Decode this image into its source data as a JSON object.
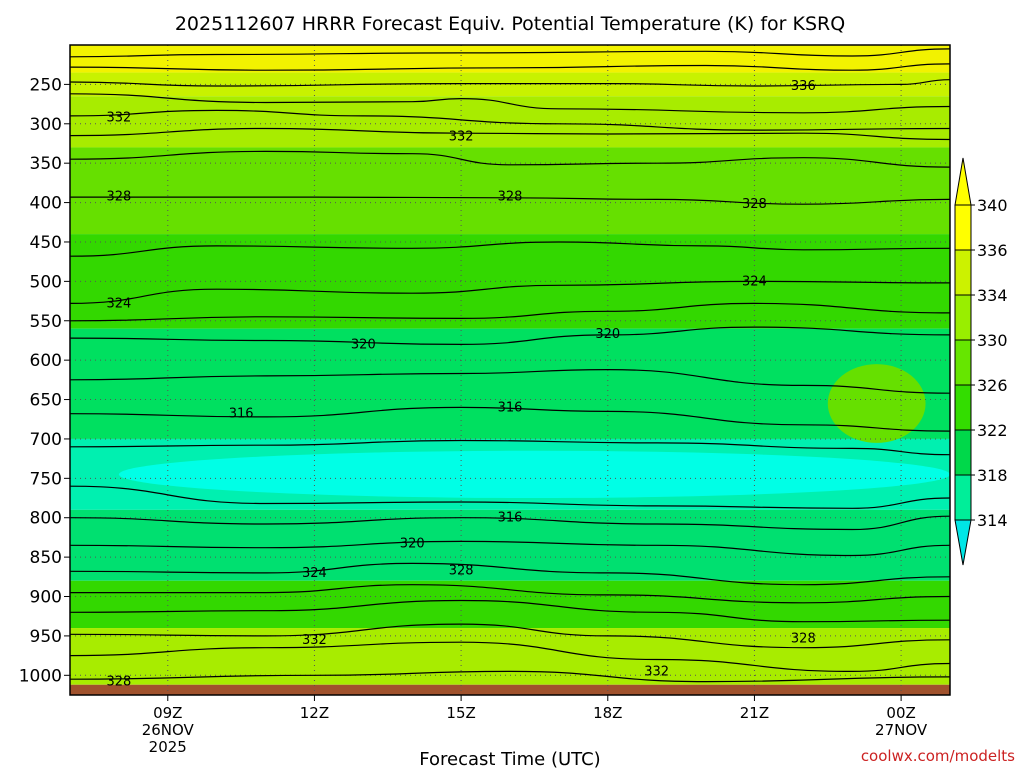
{
  "chart_data": {
    "type": "contour",
    "title": "2025112607 HRRR Forecast Equiv. Potential Temperature (K) for KSRQ",
    "xlabel": "Forecast Time (UTC)",
    "ylabel": "",
    "credit": "coolwx.com/modelts",
    "units": "K",
    "x_ticks": [
      {
        "hour": 9,
        "label": "09Z",
        "sub1": "26NOV",
        "sub2": "2025"
      },
      {
        "hour": 12,
        "label": "12Z",
        "sub1": "",
        "sub2": ""
      },
      {
        "hour": 15,
        "label": "15Z",
        "sub1": "",
        "sub2": ""
      },
      {
        "hour": 18,
        "label": "18Z",
        "sub1": "",
        "sub2": ""
      },
      {
        "hour": 21,
        "label": "21Z",
        "sub1": "",
        "sub2": ""
      },
      {
        "hour": 24,
        "label": "00Z",
        "sub1": "27NOV",
        "sub2": ""
      }
    ],
    "x_range_hours": [
      7,
      25
    ],
    "y_ticks": [
      250,
      300,
      350,
      400,
      450,
      500,
      550,
      600,
      650,
      700,
      750,
      800,
      850,
      900,
      950,
      1000
    ],
    "y_range_hpa": [
      200,
      1025
    ],
    "colorbar": {
      "levels": [
        314,
        318,
        322,
        326,
        330,
        334,
        336,
        340
      ],
      "colors": [
        "#00e6e6",
        "#00ee99",
        "#00d84a",
        "#33dd00",
        "#66e600",
        "#99ee00",
        "#ccf200",
        "#ffff00"
      ]
    },
    "layers": [
      {
        "p_top": 200,
        "p_bot": 235,
        "value": 340,
        "color": "#f2f200"
      },
      {
        "p_top": 235,
        "p_bot": 265,
        "value": 336,
        "color": "#c8f200"
      },
      {
        "p_top": 265,
        "p_bot": 330,
        "value": 334,
        "color": "#a8ec00"
      },
      {
        "p_top": 330,
        "p_bot": 440,
        "value": 330,
        "color": "#66e000"
      },
      {
        "p_top": 440,
        "p_bot": 560,
        "value": 326,
        "color": "#33d800"
      },
      {
        "p_top": 560,
        "p_bot": 700,
        "value": 322,
        "color": "#00e060"
      },
      {
        "p_top": 700,
        "p_bot": 790,
        "value": 318,
        "color": "#00f0b0"
      },
      {
        "p_top": 790,
        "p_bot": 880,
        "value": 322,
        "color": "#00e070"
      },
      {
        "p_top": 880,
        "p_bot": 940,
        "value": 326,
        "color": "#33d800"
      },
      {
        "p_top": 940,
        "p_bot": 1012,
        "value": 330,
        "color": "#a8ec00"
      }
    ],
    "cold_core": {
      "p_top": 715,
      "p_bot": 775,
      "value": 314,
      "color": "#00ffe6",
      "h_start": 8,
      "h_end": 25
    },
    "warm_pocket": {
      "p_top": 605,
      "p_bot": 705,
      "value": 328,
      "color": "#66e000",
      "h_start": 22.5,
      "h_end": 24.5
    },
    "ground": {
      "p_top": 1012,
      "p_bot": 1025,
      "color": "#a0522d"
    },
    "contours": [
      {
        "value": 338,
        "points": [
          [
            7,
            215
          ],
          [
            10,
            212
          ],
          [
            15,
            210
          ],
          [
            20,
            208
          ],
          [
            23,
            214
          ],
          [
            25,
            205
          ]
        ]
      },
      {
        "value": 338,
        "points": [
          [
            7,
            228
          ],
          [
            11,
            232
          ],
          [
            16,
            229
          ],
          [
            20,
            226
          ],
          [
            23,
            232
          ],
          [
            25,
            224
          ]
        ]
      },
      {
        "value": 336,
        "points": [
          [
            7,
            247
          ],
          [
            10,
            252
          ],
          [
            15,
            249
          ],
          [
            18,
            249
          ],
          [
            21,
            252
          ],
          [
            24,
            250
          ],
          [
            25,
            244
          ]
        ]
      },
      {
        "value": 334,
        "points": [
          [
            7,
            262
          ],
          [
            11,
            273
          ],
          [
            14,
            272
          ],
          [
            15,
            268
          ],
          [
            17,
            281
          ],
          [
            22,
            286
          ],
          [
            25,
            278
          ]
        ]
      },
      {
        "value": 332,
        "points": [
          [
            7,
            290
          ],
          [
            10,
            283
          ],
          [
            13,
            290
          ],
          [
            17,
            300
          ],
          [
            21,
            308
          ],
          [
            25,
            306
          ]
        ]
      },
      {
        "value": 332,
        "points": [
          [
            7,
            315
          ],
          [
            11,
            306
          ],
          [
            15,
            312
          ],
          [
            18,
            313
          ],
          [
            22,
            312
          ],
          [
            25,
            320
          ]
        ]
      },
      {
        "value": 330,
        "points": [
          [
            7,
            345
          ],
          [
            11,
            335
          ],
          [
            14,
            338
          ],
          [
            16,
            352
          ],
          [
            19,
            350
          ],
          [
            22,
            343
          ],
          [
            25,
            355
          ]
        ]
      },
      {
        "value": 328,
        "points": [
          [
            7,
            393
          ],
          [
            12,
            393
          ],
          [
            16,
            394
          ],
          [
            19,
            396
          ],
          [
            22,
            402
          ],
          [
            25,
            396
          ]
        ]
      },
      {
        "value": 326,
        "points": [
          [
            7,
            468
          ],
          [
            10,
            455
          ],
          [
            14,
            458
          ],
          [
            17,
            450
          ],
          [
            20,
            455
          ],
          [
            22,
            460
          ],
          [
            25,
            458
          ]
        ]
      },
      {
        "value": 324,
        "points": [
          [
            7,
            528
          ],
          [
            10,
            510
          ],
          [
            14,
            515
          ],
          [
            17,
            505
          ],
          [
            21,
            500
          ],
          [
            25,
            502
          ]
        ]
      },
      {
        "value": 322,
        "points": [
          [
            7,
            550
          ],
          [
            11,
            545
          ],
          [
            15,
            547
          ],
          [
            18,
            538
          ],
          [
            21,
            528
          ],
          [
            25,
            540
          ]
        ]
      },
      {
        "value": 320,
        "points": [
          [
            7,
            572
          ],
          [
            11,
            575
          ],
          [
            15,
            580
          ],
          [
            18,
            568
          ],
          [
            21,
            558
          ],
          [
            25,
            568
          ]
        ]
      },
      {
        "value": 318,
        "points": [
          [
            7,
            625
          ],
          [
            11,
            620
          ],
          [
            15,
            617
          ],
          [
            18,
            612
          ],
          [
            22,
            632
          ],
          [
            25,
            642
          ]
        ]
      },
      {
        "value": 316,
        "points": [
          [
            7,
            668
          ],
          [
            11,
            672
          ],
          [
            15,
            660
          ],
          [
            18,
            665
          ],
          [
            22,
            682
          ],
          [
            25,
            690
          ]
        ]
      },
      {
        "value": 316,
        "points": [
          [
            7,
            710
          ],
          [
            11,
            708
          ],
          [
            15,
            702
          ],
          [
            19,
            705
          ],
          [
            23,
            712
          ],
          [
            25,
            720
          ]
        ]
      },
      {
        "value": 318,
        "points": [
          [
            7,
            760
          ],
          [
            11,
            782
          ],
          [
            15,
            780
          ],
          [
            19,
            785
          ],
          [
            23,
            788
          ],
          [
            25,
            775
          ]
        ]
      },
      {
        "value": 318,
        "points": [
          [
            7,
            800
          ],
          [
            11,
            808
          ],
          [
            15,
            800
          ],
          [
            19,
            808
          ],
          [
            23,
            815
          ],
          [
            25,
            798
          ]
        ]
      },
      {
        "value": 320,
        "points": [
          [
            7,
            835
          ],
          [
            11,
            838
          ],
          [
            15,
            830
          ],
          [
            19,
            835
          ],
          [
            23,
            848
          ],
          [
            25,
            835
          ]
        ]
      },
      {
        "value": 324,
        "points": [
          [
            7,
            868
          ],
          [
            11,
            870
          ],
          [
            14,
            858
          ],
          [
            18,
            870
          ],
          [
            22,
            885
          ],
          [
            25,
            875
          ]
        ]
      },
      {
        "value": 326,
        "points": [
          [
            7,
            895
          ],
          [
            11,
            895
          ],
          [
            14,
            885
          ],
          [
            18,
            898
          ],
          [
            22,
            908
          ],
          [
            25,
            900
          ]
        ]
      },
      {
        "value": 328,
        "points": [
          [
            7,
            920
          ],
          [
            11,
            918
          ],
          [
            15,
            905
          ],
          [
            19,
            920
          ],
          [
            22,
            932
          ],
          [
            25,
            930
          ]
        ]
      },
      {
        "value": 330,
        "points": [
          [
            7,
            948
          ],
          [
            11,
            950
          ],
          [
            15,
            935
          ],
          [
            18,
            950
          ],
          [
            22,
            965
          ],
          [
            25,
            955
          ]
        ]
      },
      {
        "value": 332,
        "points": [
          [
            7,
            975
          ],
          [
            11,
            965
          ],
          [
            15,
            958
          ],
          [
            19,
            980
          ],
          [
            23,
            995
          ],
          [
            25,
            985
          ]
        ]
      },
      {
        "value": 330,
        "points": [
          [
            7,
            1005
          ],
          [
            12,
            1000
          ],
          [
            16,
            995
          ],
          [
            20,
            1008
          ],
          [
            25,
            1002
          ]
        ]
      }
    ],
    "contour_labels": [
      {
        "text": "336",
        "hour": 22.0,
        "hpa": 252
      },
      {
        "text": "332",
        "hour": 8.0,
        "hpa": 292
      },
      {
        "text": "332",
        "hour": 15.0,
        "hpa": 316
      },
      {
        "text": "328",
        "hour": 8.0,
        "hpa": 392
      },
      {
        "text": "328",
        "hour": 16.0,
        "hpa": 392
      },
      {
        "text": "328",
        "hour": 21.0,
        "hpa": 402
      },
      {
        "text": "324",
        "hour": 21.0,
        "hpa": 500
      },
      {
        "text": "324",
        "hour": 8.0,
        "hpa": 528
      },
      {
        "text": "320",
        "hour": 13.0,
        "hpa": 580
      },
      {
        "text": "320",
        "hour": 18.0,
        "hpa": 567
      },
      {
        "text": "316",
        "hour": 10.5,
        "hpa": 668
      },
      {
        "text": "316",
        "hour": 16.0,
        "hpa": 660
      },
      {
        "text": "316",
        "hour": 16.0,
        "hpa": 800
      },
      {
        "text": "320",
        "hour": 14.0,
        "hpa": 833
      },
      {
        "text": "324",
        "hour": 12.0,
        "hpa": 870
      },
      {
        "text": "328",
        "hour": 15.0,
        "hpa": 867
      },
      {
        "text": "332",
        "hour": 12.0,
        "hpa": 955
      },
      {
        "text": "328",
        "hour": 22.0,
        "hpa": 953
      },
      {
        "text": "332",
        "hour": 19.0,
        "hpa": 995
      },
      {
        "text": "328",
        "hour": 8.0,
        "hpa": 1008
      }
    ]
  }
}
